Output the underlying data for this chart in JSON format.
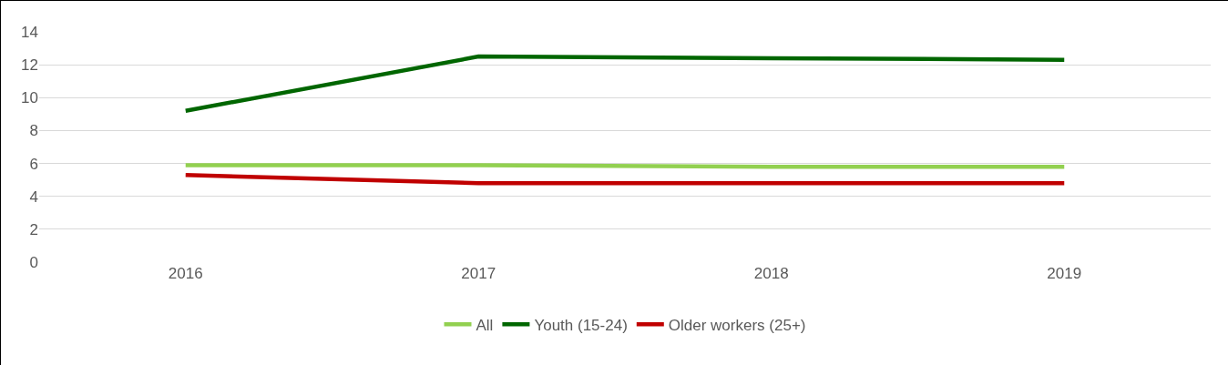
{
  "chart_data": {
    "type": "line",
    "categories": [
      "2016",
      "2017",
      "2018",
      "2019"
    ],
    "series": [
      {
        "name": "All",
        "color": "#92d050",
        "values": [
          5.9,
          5.9,
          5.8,
          5.8
        ]
      },
      {
        "name": "Youth (15-24)",
        "color": "#006600",
        "values": [
          9.2,
          12.5,
          12.4,
          12.3
        ]
      },
      {
        "name": "Older workers (25+)",
        "color": "#c00000",
        "values": [
          5.3,
          4.8,
          4.8,
          4.8
        ]
      }
    ],
    "ylim": [
      0,
      14
    ],
    "yticks": [
      0,
      2,
      4,
      6,
      8,
      10,
      12,
      14
    ],
    "grid": "y",
    "legend": "bottom",
    "marker": "none",
    "line_style": "solid"
  }
}
